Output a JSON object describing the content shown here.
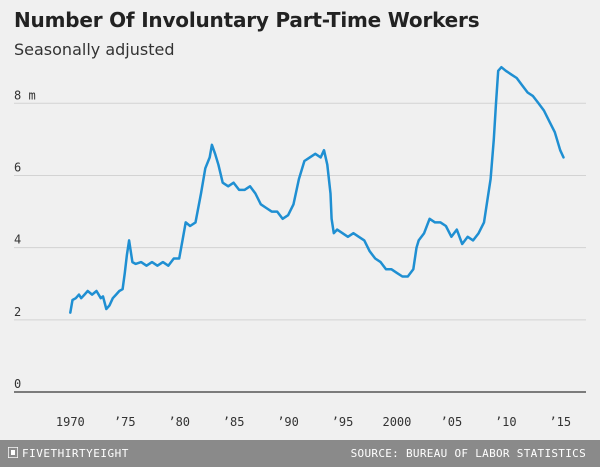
{
  "header": {
    "title": "Number Of Involuntary Part-Time Workers",
    "subtitle": "Seasonally adjusted"
  },
  "footer": {
    "brand": "FIVETHIRTYEIGHT",
    "source": "SOURCE: BUREAU OF LABOR STATISTICS"
  },
  "colors": {
    "line": "#1f8fd2",
    "background": "#f0f0f0",
    "grid": "#d3d3d3",
    "zero_line": "#555555",
    "footer": "#8a8a8a"
  },
  "chart_data": {
    "type": "line",
    "title": "Number Of Involuntary Part-Time Workers",
    "subtitle": "Seasonally adjusted",
    "xlim": [
      1968.5,
      2017
    ],
    "ylim": [
      0,
      9.2
    ],
    "grid": true,
    "y_ticks": [
      0,
      2,
      4,
      6,
      8
    ],
    "y_tick_labels": [
      "0",
      "2",
      "4",
      "6",
      "8 m"
    ],
    "x_ticks": [
      1970,
      1975,
      1980,
      1985,
      1990,
      1995,
      2000,
      2005,
      2010,
      2015
    ],
    "x_tick_labels": [
      "1970",
      "’75",
      "’80",
      "’85",
      "’90",
      "’95",
      "2000",
      "’05",
      "’10",
      "’15"
    ],
    "series": [
      {
        "x": [
          1970.0,
          1970.2,
          1970.5,
          1970.8,
          1971.0,
          1971.3,
          1971.6,
          1972.0,
          1972.4,
          1972.8,
          1973.0,
          1973.3,
          1973.6,
          1973.9,
          1974.2,
          1974.5,
          1974.8,
          1975.0,
          1975.2,
          1975.4,
          1975.7,
          1976.0,
          1976.5,
          1977.0,
          1977.5,
          1978.0,
          1978.5,
          1979.0,
          1979.5,
          1980.0,
          1980.3,
          1980.6,
          1981.0,
          1981.5,
          1982.0,
          1982.4,
          1982.8,
          1983.0,
          1983.3,
          1983.6,
          1984.0,
          1984.5,
          1985.0,
          1985.5,
          1986.0,
          1986.5,
          1987.0,
          1987.5,
          1988.0,
          1988.5,
          1989.0,
          1989.5,
          1990.0,
          1990.5,
          1991.0,
          1991.5,
          1992.0,
          1992.5,
          1993.0,
          1993.3,
          1993.6,
          1993.9,
          1994.0,
          1994.2,
          1994.5,
          1995.0,
          1995.5,
          1996.0,
          1996.5,
          1997.0,
          1997.5,
          1998.0,
          1998.5,
          1999.0,
          1999.5,
          2000.0,
          2000.5,
          2001.0,
          2001.5,
          2001.8,
          2002.0,
          2002.5,
          2003.0,
          2003.5,
          2004.0,
          2004.5,
          2005.0,
          2005.5,
          2006.0,
          2006.5,
          2007.0,
          2007.5,
          2008.0,
          2008.3,
          2008.6,
          2008.9,
          2009.1,
          2009.3,
          2009.6,
          2010.0,
          2010.5,
          2011.0,
          2011.5,
          2012.0,
          2012.5,
          2013.0,
          2013.5,
          2014.0,
          2014.5,
          2015.0,
          2015.3
        ],
        "values": [
          2.2,
          2.55,
          2.6,
          2.7,
          2.6,
          2.7,
          2.8,
          2.7,
          2.8,
          2.6,
          2.65,
          2.3,
          2.4,
          2.6,
          2.7,
          2.8,
          2.85,
          3.3,
          3.8,
          4.2,
          3.6,
          3.55,
          3.6,
          3.5,
          3.6,
          3.5,
          3.6,
          3.5,
          3.7,
          3.7,
          4.2,
          4.7,
          4.6,
          4.7,
          5.5,
          6.2,
          6.5,
          6.85,
          6.6,
          6.3,
          5.8,
          5.7,
          5.8,
          5.6,
          5.6,
          5.7,
          5.5,
          5.2,
          5.1,
          5.0,
          5.0,
          4.8,
          4.9,
          5.2,
          5.9,
          6.4,
          6.5,
          6.6,
          6.5,
          6.7,
          6.3,
          5.5,
          4.8,
          4.4,
          4.5,
          4.4,
          4.3,
          4.4,
          4.3,
          4.2,
          3.9,
          3.7,
          3.6,
          3.4,
          3.4,
          3.3,
          3.2,
          3.2,
          3.4,
          4.0,
          4.2,
          4.4,
          4.8,
          4.7,
          4.7,
          4.6,
          4.3,
          4.5,
          4.1,
          4.3,
          4.2,
          4.4,
          4.7,
          5.3,
          5.9,
          7.0,
          8.0,
          8.9,
          9.0,
          8.9,
          8.8,
          8.7,
          8.5,
          8.3,
          8.2,
          8.0,
          7.8,
          7.5,
          7.2,
          6.7,
          6.5
        ]
      }
    ]
  }
}
